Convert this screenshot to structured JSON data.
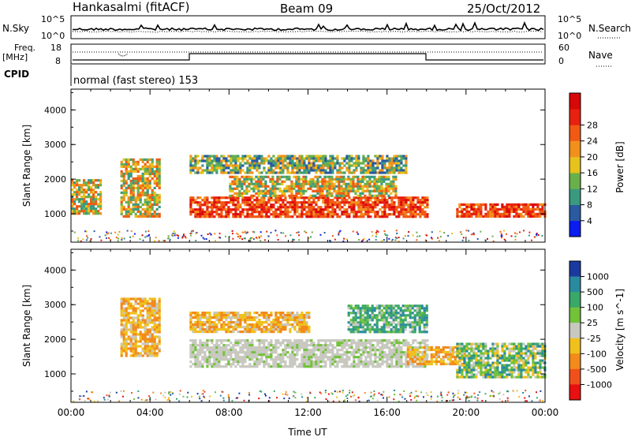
{
  "header": {
    "station": "Hankasalmi (fitACF)",
    "beam": "Beam 09",
    "date": "25/Oct/2012"
  },
  "panels": {
    "noise": {
      "left_label": "N.Sky",
      "right_label": "N.Search",
      "left_ticks": [
        "10^5",
        "10^0"
      ],
      "right_ticks": [
        "10^5",
        "10^0"
      ]
    },
    "freq": {
      "left_label_1": "Freq.",
      "left_label_2": "[MHz]",
      "left_ticks": [
        "18",
        "8"
      ],
      "right_label": "Nave",
      "right_ticks": [
        "60",
        "0"
      ]
    },
    "cpid": {
      "label": "CPID",
      "text": "normal (fast stereo) 153"
    }
  },
  "chart_data": [
    {
      "type": "heatmap",
      "name": "Power",
      "ylabel": "Slant Range [km]",
      "yticks": [
        "1000",
        "2000",
        "3000",
        "4000"
      ],
      "ylim": [
        180,
        4600
      ],
      "xlim": [
        0,
        24
      ],
      "colorbar": {
        "title": "Power [dB]",
        "ticks": [
          "4",
          "8",
          "12",
          "16",
          "20",
          "24",
          "28"
        ],
        "colors": [
          "#0a1cf0",
          "#2a5aa0",
          "#3a9a80",
          "#6ab04a",
          "#e6c21c",
          "#f2901c",
          "#f05a14",
          "#e82010",
          "#d80808"
        ]
      },
      "features": [
        {
          "t0": 6.0,
          "t1": 18.0,
          "r0": 900,
          "r1": 1500,
          "level": "high"
        },
        {
          "t0": 8.0,
          "t1": 16.5,
          "r0": 1500,
          "r1": 2100,
          "level": "medium"
        },
        {
          "t0": 2.5,
          "t1": 4.5,
          "r0": 900,
          "r1": 2600,
          "level": "medium"
        },
        {
          "t0": 19.5,
          "t1": 24.0,
          "r0": 900,
          "r1": 1300,
          "level": "high"
        },
        {
          "t0": 0.0,
          "t1": 1.5,
          "r0": 1000,
          "r1": 2000,
          "level": "medium"
        },
        {
          "t0": 6.0,
          "t1": 17.0,
          "r0": 2200,
          "r1": 2700,
          "level": "mixed"
        }
      ]
    },
    {
      "type": "heatmap",
      "name": "Velocity",
      "ylabel": "Slant Range [km]",
      "yticks": [
        "1000",
        "2000",
        "3000",
        "4000"
      ],
      "ylim": [
        180,
        4600
      ],
      "xlim": [
        0,
        24
      ],
      "xticks": [
        "00:00",
        "04:00",
        "08:00",
        "12:00",
        "16:00",
        "20:00",
        "00:00"
      ],
      "xlabel": "Time UT",
      "colorbar": {
        "title": "Velocity [m s^-1]",
        "ticks": [
          "1000",
          "500",
          "100",
          "25",
          "-25",
          "-100",
          "-500",
          "-1000"
        ],
        "colors": [
          "#1a3aa0",
          "#2a8aa0",
          "#3aa868",
          "#72c23a",
          "#c8c8c0",
          "#f0c01c",
          "#f28a1c",
          "#f0501c",
          "#e81010"
        ]
      },
      "features": [
        {
          "t0": 6.0,
          "t1": 18.0,
          "r0": 1200,
          "r1": 2000,
          "level": "gray"
        },
        {
          "t0": 2.5,
          "t1": 4.5,
          "r0": 1500,
          "r1": 3200,
          "level": "orange"
        },
        {
          "t0": 6.0,
          "t1": 12.0,
          "r0": 2200,
          "r1": 2800,
          "level": "orange"
        },
        {
          "t0": 17.0,
          "t1": 20.0,
          "r0": 1300,
          "r1": 1800,
          "level": "orange"
        },
        {
          "t0": 14.0,
          "t1": 18.0,
          "r0": 2200,
          "r1": 3000,
          "level": "green"
        },
        {
          "t0": 19.5,
          "t1": 24.0,
          "r0": 900,
          "r1": 1900,
          "level": "mixed"
        }
      ]
    }
  ]
}
